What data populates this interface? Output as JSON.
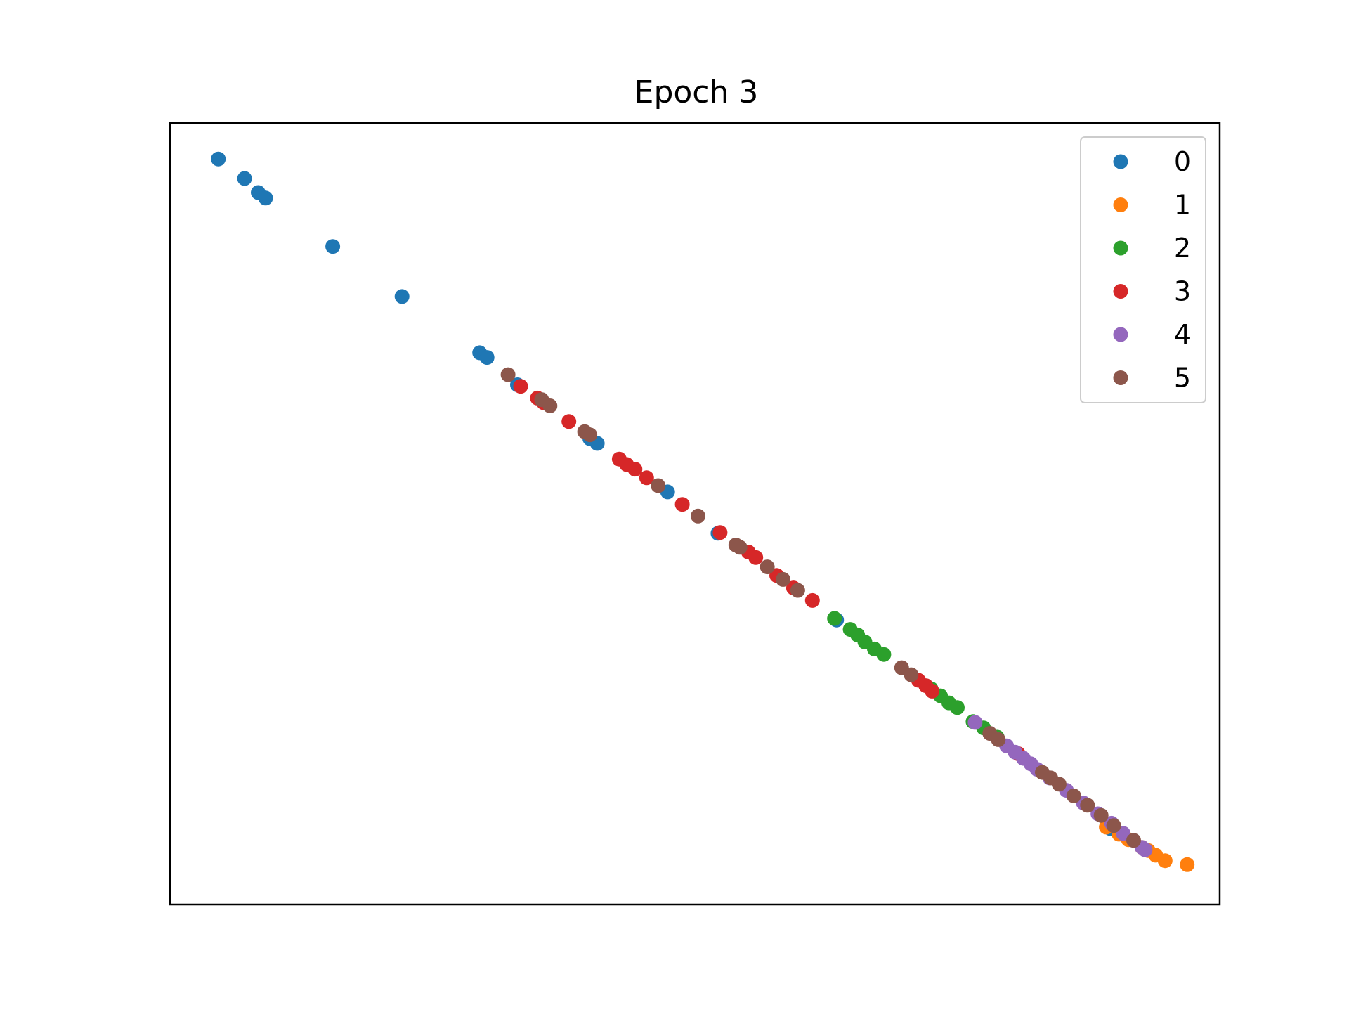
{
  "chart_data": {
    "type": "scatter",
    "title": "Epoch 3",
    "xlabel": "",
    "ylabel": "",
    "xlim": [
      0,
      1
    ],
    "ylim": [
      0,
      1
    ],
    "ticks_visible": false,
    "grid": false,
    "legend_position": "top-right",
    "series": [
      {
        "name": "0",
        "color": "#1f77b4",
        "x": [
          0.046,
          0.071,
          0.084,
          0.091,
          0.155,
          0.221,
          0.295,
          0.302,
          0.331,
          0.4,
          0.407,
          0.474,
          0.522,
          0.635,
          0.896
        ],
        "y": [
          0.954,
          0.929,
          0.911,
          0.904,
          0.842,
          0.778,
          0.706,
          0.7,
          0.665,
          0.596,
          0.59,
          0.528,
          0.475,
          0.364,
          0.097
        ]
      },
      {
        "name": "1",
        "color": "#ff7f0e",
        "x": [
          0.892,
          0.904,
          0.913,
          0.926,
          0.932,
          0.939,
          0.948,
          0.969
        ],
        "y": [
          0.099,
          0.09,
          0.083,
          0.073,
          0.069,
          0.063,
          0.056,
          0.051
        ]
      },
      {
        "name": "2",
        "color": "#2ca02c",
        "x": [
          0.633,
          0.648,
          0.655,
          0.662,
          0.671,
          0.68,
          0.725,
          0.734,
          0.742,
          0.75,
          0.765,
          0.775,
          0.788
        ],
        "y": [
          0.366,
          0.352,
          0.345,
          0.336,
          0.327,
          0.32,
          0.276,
          0.267,
          0.258,
          0.252,
          0.234,
          0.226,
          0.214
        ]
      },
      {
        "name": "3",
        "color": "#d62728",
        "x": [
          0.334,
          0.35,
          0.356,
          0.38,
          0.428,
          0.435,
          0.443,
          0.454,
          0.488,
          0.524,
          0.551,
          0.558,
          0.578,
          0.594,
          0.612,
          0.713,
          0.72,
          0.726,
          0.808
        ],
        "y": [
          0.663,
          0.648,
          0.642,
          0.618,
          0.57,
          0.563,
          0.557,
          0.546,
          0.512,
          0.476,
          0.451,
          0.444,
          0.421,
          0.405,
          0.389,
          0.287,
          0.28,
          0.273,
          0.193
        ]
      },
      {
        "name": "4",
        "color": "#9467bd",
        "x": [
          0.767,
          0.797,
          0.805,
          0.813,
          0.82,
          0.826,
          0.838,
          0.854,
          0.87,
          0.884,
          0.897,
          0.908,
          0.926,
          0.929
        ],
        "y": [
          0.233,
          0.203,
          0.195,
          0.187,
          0.18,
          0.173,
          0.162,
          0.146,
          0.13,
          0.116,
          0.104,
          0.091,
          0.073,
          0.07
        ]
      },
      {
        "name": "5",
        "color": "#8c564b",
        "x": [
          0.322,
          0.354,
          0.362,
          0.395,
          0.4,
          0.465,
          0.503,
          0.539,
          0.543,
          0.569,
          0.584,
          0.598,
          0.697,
          0.706,
          0.781,
          0.789,
          0.831,
          0.839,
          0.847,
          0.861,
          0.874,
          0.887,
          0.899,
          0.918
        ],
        "y": [
          0.678,
          0.646,
          0.638,
          0.605,
          0.601,
          0.536,
          0.497,
          0.46,
          0.457,
          0.432,
          0.416,
          0.402,
          0.303,
          0.294,
          0.219,
          0.211,
          0.169,
          0.162,
          0.154,
          0.139,
          0.127,
          0.114,
          0.101,
          0.082
        ]
      }
    ]
  }
}
